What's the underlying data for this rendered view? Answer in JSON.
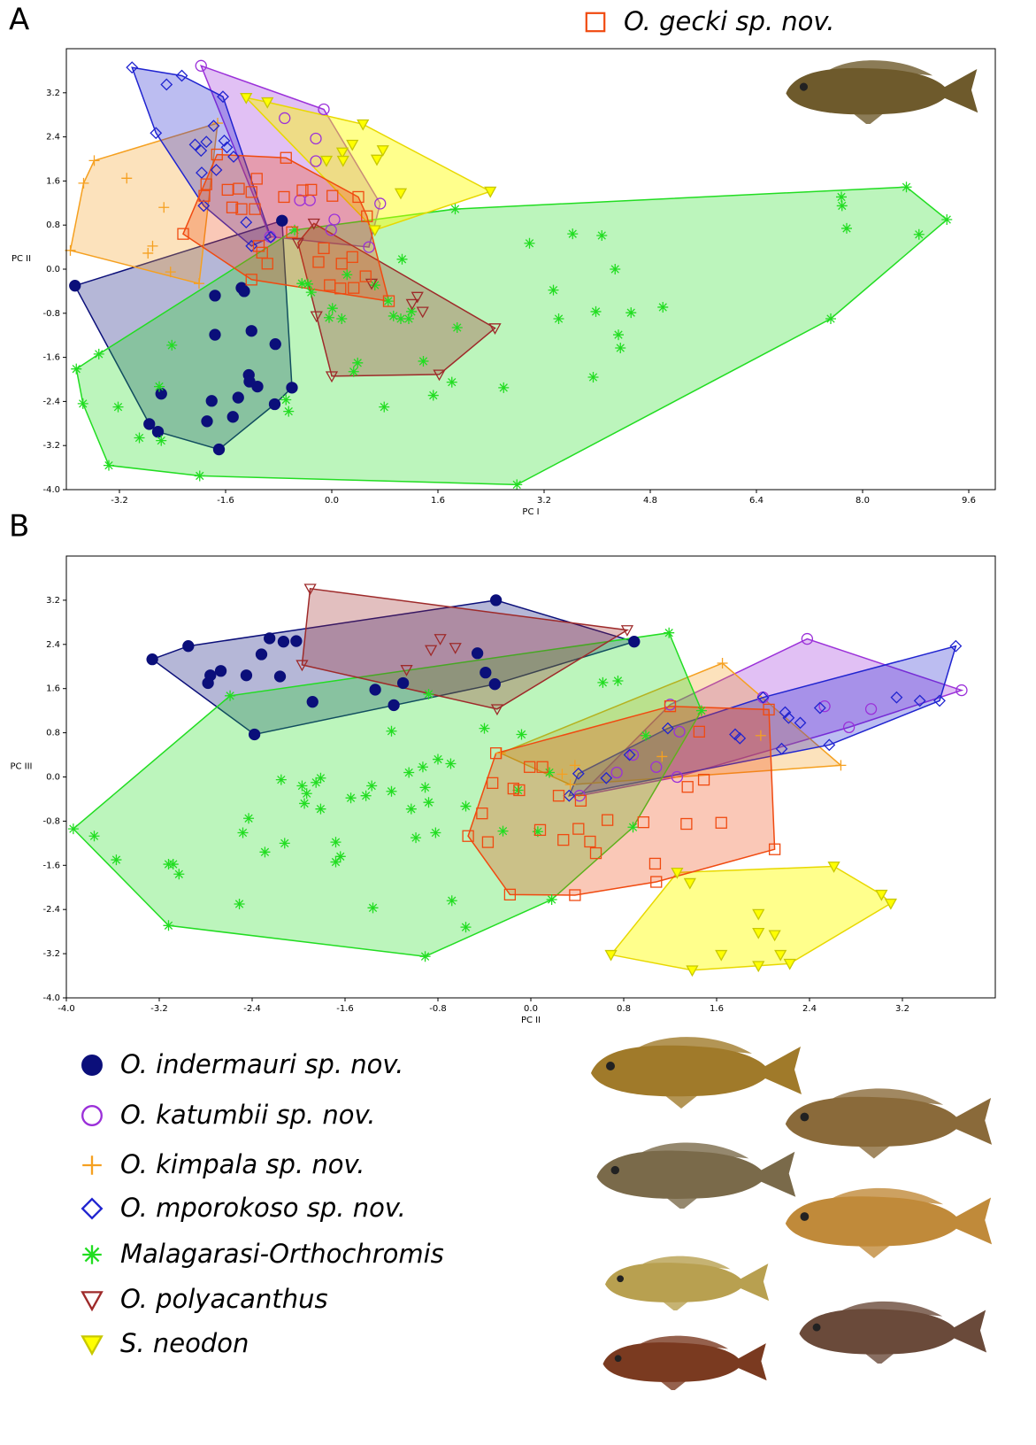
{
  "chart_data": [
    {
      "type": "scatter",
      "panel_label": "A",
      "xlabel": "PC I",
      "ylabel": "PC II",
      "xlim": [
        -4,
        10
      ],
      "ylim": [
        -4,
        4
      ],
      "xticks": [
        -3.2,
        -1.6,
        {
          "value": 0,
          "label": "0.0"
        },
        1.6,
        3.2,
        4.8,
        6.4,
        {
          "value": 8,
          "label": "8.0"
        },
        9.6
      ],
      "yticks": [
        {
          "value": -4,
          "label": "-4.0"
        },
        -3.2,
        -2.4,
        -1.6,
        -0.8,
        {
          "value": 0,
          "label": "0.0"
        },
        0.8,
        1.6,
        2.4,
        3.2
      ],
      "series": [
        {
          "name": "O. indermauri sp. nov.",
          "color": "#0b0f7a",
          "marker": "circle-filled",
          "x": [
            -3.87,
            -0.75,
            -1.76,
            -1.36,
            -1.32,
            -1.76,
            -1.21,
            -0.85,
            -0.6,
            -2.57,
            -1.12,
            -1.25,
            -1.24,
            -1.81,
            -1.41,
            -0.86,
            -2.75,
            -2.62,
            -1.88,
            -1.49,
            -1.7
          ],
          "values": [
            -0.3,
            0.88,
            -0.48,
            -0.34,
            -0.4,
            -1.19,
            -1.12,
            -1.36,
            -2.15,
            -2.26,
            -2.13,
            -1.92,
            -2.04,
            -2.39,
            -2.33,
            -2.45,
            -2.81,
            -2.95,
            -2.76,
            -2.68,
            -3.27
          ]
        },
        {
          "name": "O. katumbii sp. nov.",
          "color": "#9b30d9",
          "marker": "circle",
          "x": [
            -1.97,
            -0.12,
            -0.71,
            -0.24,
            -0.48,
            -0.33,
            -0.24,
            0.73,
            0.04,
            -0.01,
            0.56,
            -0.93
          ],
          "values": [
            3.69,
            2.9,
            2.74,
            2.37,
            1.25,
            1.25,
            1.96,
            1.19,
            0.9,
            0.71,
            0.4,
            0.59
          ]
        },
        {
          "name": "O. kimpala sp. nov.",
          "color": "#f5a020",
          "marker": "plus",
          "x": [
            -3.58,
            -3.74,
            -3.09,
            -2.53,
            -2.7,
            -2.77,
            -2.43,
            -2.0,
            -3.94,
            -1.72
          ],
          "values": [
            1.97,
            1.56,
            1.65,
            1.12,
            0.42,
            0.29,
            -0.05,
            -0.26,
            0.34,
            2.65
          ]
        },
        {
          "name": "O. mporokoso sp. nov.",
          "color": "#2024d0",
          "marker": "diamond",
          "x": [
            -3.01,
            -2.49,
            -2.26,
            -1.64,
            -1.78,
            -2.65,
            -2.06,
            -1.89,
            -1.97,
            -1.74,
            -1.48,
            -1.62,
            -1.58,
            -1.96,
            -1.93,
            -1.29,
            -1.21,
            -0.92
          ],
          "values": [
            3.66,
            3.35,
            3.51,
            3.13,
            2.6,
            2.47,
            2.26,
            2.31,
            2.15,
            1.8,
            2.04,
            2.33,
            2.21,
            1.75,
            1.15,
            0.85,
            0.42,
            0.58
          ]
        },
        {
          "name": "Malagarasi-Orthochromis",
          "color": "#22dd22",
          "marker": "asterisk",
          "x": [
            8.66,
            9.27,
            7.68,
            7.69,
            7.76,
            8.85,
            7.52,
            -3.85,
            -3.51,
            -3.75,
            -3.22,
            -2.9,
            -2.57,
            -2.6,
            -2.41,
            -3.36,
            -1.99,
            2.79,
            1.86,
            2.98,
            3.63,
            4.07,
            4.27,
            3.34,
            3.42,
            3.98,
            4.51,
            4.99,
            4.32,
            4.35,
            3.94,
            2.59,
            1.81,
            1.53,
            1.38,
            0.79,
            0.39,
            0.33,
            1.06,
            0.85,
            1.2,
            1.04,
            1.16,
            0.93,
            1.89,
            0.01,
            -0.04,
            0.15,
            -0.31,
            -0.36,
            -0.45,
            0.23,
            -0.56,
            -0.65,
            -0.69,
            0.65
          ],
          "values": [
            1.49,
            0.9,
            1.31,
            1.15,
            0.74,
            0.63,
            -0.9,
            -1.81,
            -1.54,
            -2.44,
            -2.5,
            -3.06,
            -3.11,
            -2.13,
            -1.38,
            -3.56,
            -3.75,
            -3.91,
            1.09,
            0.47,
            0.64,
            0.61,
            0.0,
            -0.38,
            -0.9,
            -0.77,
            -0.79,
            -0.69,
            -1.19,
            -1.43,
            -1.96,
            -2.15,
            -2.05,
            -2.29,
            -1.67,
            -2.5,
            -1.7,
            -1.86,
            0.18,
            -0.58,
            -0.77,
            -0.9,
            -0.9,
            -0.85,
            -1.06,
            -0.71,
            -0.88,
            -0.9,
            -0.42,
            -0.27,
            -0.26,
            -0.1,
            0.71,
            -2.58,
            -2.37,
            -0.29
          ]
        },
        {
          "name": "O. polyacanthus",
          "color": "#9e2a2a",
          "marker": "triangle-down",
          "x": [
            -0.27,
            -0.51,
            -0.23,
            0.0,
            1.62,
            2.46,
            1.37,
            1.21,
            1.29,
            0.6
          ],
          "values": [
            0.83,
            0.48,
            -0.85,
            -1.94,
            -1.91,
            -1.07,
            -0.77,
            -0.63,
            -0.5,
            -0.26
          ]
        },
        {
          "name": "S. neodon",
          "color": "#ffff00",
          "marker": "triangle-down-filled",
          "x": [
            -1.29,
            -0.97,
            0.47,
            2.39,
            0.31,
            0.16,
            0.17,
            -0.08,
            0.77,
            0.68,
            1.04,
            0.65
          ],
          "values": [
            3.11,
            3.03,
            2.63,
            1.41,
            2.26,
            2.12,
            1.97,
            1.97,
            2.16,
            1.99,
            1.38,
            0.71
          ]
        },
        {
          "name": "O. gecki sp. nov.",
          "color": "#f04a10",
          "marker": "square",
          "x": [
            -1.73,
            -0.69,
            -1.13,
            -1.57,
            -1.4,
            -1.21,
            -1.92,
            -1.5,
            -1.36,
            -1.16,
            -1.89,
            -0.72,
            -0.44,
            -0.31,
            0.01,
            0.53,
            0.4,
            -1.05,
            -0.97,
            -1.1,
            -0.6,
            -0.12,
            0.15,
            0.31,
            -0.2,
            -0.03,
            0.13,
            0.33,
            0.51,
            0.86,
            -2.24,
            -1.21
          ],
          "values": [
            2.08,
            2.02,
            1.64,
            1.44,
            1.46,
            1.4,
            1.33,
            1.12,
            1.09,
            1.09,
            1.54,
            1.31,
            1.43,
            1.44,
            1.33,
            0.96,
            1.31,
            0.3,
            0.1,
            0.42,
            0.67,
            0.38,
            0.1,
            0.22,
            0.13,
            -0.29,
            -0.35,
            -0.34,
            -0.13,
            -0.58,
            0.64,
            -0.19
          ]
        }
      ]
    },
    {
      "type": "scatter",
      "panel_label": "B",
      "xlabel": "PC II",
      "ylabel": "PC III",
      "xlim": [
        -4,
        4
      ],
      "ylim": [
        -4,
        4
      ],
      "xticks": [
        {
          "value": -4,
          "label": "-4.0"
        },
        -3.2,
        -2.4,
        -1.6,
        -0.8,
        {
          "value": 0,
          "label": "0.0"
        },
        0.8,
        1.6,
        2.4,
        3.2
      ],
      "yticks": [
        {
          "value": -4,
          "label": "-4.0"
        },
        -3.2,
        -2.4,
        -1.6,
        -0.8,
        {
          "value": 0,
          "label": "0.0"
        },
        0.8,
        1.6,
        2.4,
        3.2
      ],
      "series": [
        {
          "color": "#0b0f7a",
          "marker": "circle-filled",
          "x": [
            -3.26,
            -2.95,
            -2.67,
            -2.76,
            -2.78,
            -2.25,
            -2.13,
            -2.02,
            -2.32,
            -2.45,
            -2.16,
            -1.88,
            -2.38,
            -1.34,
            -1.18,
            -1.1,
            -0.46,
            -0.39,
            -0.31,
            -0.3,
            0.89
          ],
          "values": [
            2.13,
            2.37,
            1.92,
            1.84,
            1.7,
            2.51,
            2.45,
            2.46,
            2.22,
            1.84,
            1.82,
            1.36,
            0.77,
            1.58,
            1.3,
            1.7,
            2.24,
            1.89,
            1.68,
            3.2,
            2.45
          ]
        },
        {
          "color": "#9b30d9",
          "marker": "circle",
          "x": [
            2.38,
            3.71,
            2.93,
            2.74,
            2.53,
            2.0,
            1.2,
            1.28,
            1.08,
            1.26,
            0.74,
            0.42,
            0.88
          ],
          "values": [
            2.5,
            1.57,
            1.23,
            0.9,
            1.28,
            1.44,
            1.31,
            0.82,
            0.18,
            0.0,
            0.08,
            -0.34,
            0.4
          ]
        },
        {
          "color": "#f5a020",
          "marker": "plus",
          "x": [
            1.65,
            2.67,
            1.98,
            1.13,
            0.38,
            0.27,
            -0.26,
            0.34
          ],
          "values": [
            2.06,
            0.21,
            0.75,
            0.37,
            0.21,
            0.05,
            0.43,
            -0.14
          ]
        },
        {
          "color": "#2024d0",
          "marker": "diamond",
          "x": [
            3.66,
            3.52,
            3.35,
            3.15,
            2.49,
            2.19,
            2.22,
            2.32,
            2.57,
            2.16,
            1.76,
            1.8,
            2.0,
            1.18,
            0.85,
            0.65,
            0.41,
            0.33
          ],
          "values": [
            2.37,
            1.38,
            1.38,
            1.44,
            1.25,
            1.17,
            1.07,
            0.98,
            0.58,
            0.51,
            0.77,
            0.7,
            1.44,
            0.88,
            0.4,
            -0.02,
            0.06,
            -0.34
          ]
        },
        {
          "color": "#22dd22",
          "marker": "asterisk",
          "x": [
            -3.94,
            -3.76,
            -3.57,
            -3.12,
            -3.08,
            -3.03,
            -3.12,
            -2.51,
            -2.43,
            -2.48,
            -2.29,
            -2.12,
            -2.15,
            -1.97,
            -1.93,
            -1.85,
            -1.81,
            -1.95,
            -1.81,
            -1.55,
            -1.42,
            -1.37,
            -1.2,
            -1.68,
            -1.64,
            -1.68,
            -1.36,
            -0.91,
            -0.56,
            -0.68,
            -0.82,
            -0.99,
            -1.05,
            -0.93,
            -0.91,
            -0.88,
            -0.8,
            -0.69,
            -1.03,
            -0.56,
            -0.4,
            -0.08,
            0.06,
            -0.11,
            0.16,
            0.18,
            0.62,
            0.75,
            0.88,
            1.19,
            1.47,
            0.99,
            -0.88,
            -2.59,
            -0.24,
            -1.2
          ],
          "values": [
            -0.94,
            -1.07,
            -1.5,
            -1.58,
            -1.58,
            -1.76,
            -2.69,
            -2.3,
            -0.75,
            -1.01,
            -1.36,
            -1.2,
            -0.05,
            -0.16,
            -0.3,
            -0.1,
            -0.02,
            -0.48,
            -0.58,
            -0.38,
            -0.34,
            -0.16,
            -0.26,
            -1.18,
            -1.44,
            -1.54,
            -2.37,
            -3.25,
            -2.72,
            -2.24,
            -1.01,
            -1.1,
            0.08,
            0.18,
            -0.19,
            -0.46,
            0.32,
            0.24,
            -0.58,
            -0.53,
            0.88,
            0.77,
            -0.99,
            -0.24,
            0.08,
            -2.22,
            1.71,
            1.74,
            -0.91,
            2.61,
            1.2,
            0.75,
            1.5,
            1.47,
            -0.98,
            0.83
          ]
        },
        {
          "color": "#9e2a2a",
          "marker": "triangle-down",
          "x": [
            -1.9,
            -1.97,
            -0.78,
            -0.86,
            -0.65,
            -1.07,
            -0.29,
            0.83
          ],
          "values": [
            3.41,
            2.03,
            2.5,
            2.3,
            2.34,
            1.94,
            1.23,
            2.66
          ]
        },
        {
          "color": "#ffff00",
          "marker": "triangle-down-filled",
          "x": [
            0.69,
            1.39,
            1.96,
            2.23,
            2.61,
            3.02,
            3.1,
            1.37,
            1.26,
            1.96,
            1.96,
            2.1,
            2.15,
            1.64
          ],
          "values": [
            -3.22,
            -3.5,
            -3.42,
            -3.38,
            -1.62,
            -2.13,
            -2.29,
            -1.92,
            -1.73,
            -2.48,
            -2.82,
            -2.86,
            -3.22,
            -3.22
          ]
        },
        {
          "color": "#f04a10",
          "marker": "square",
          "x": [
            -0.3,
            -0.54,
            -0.18,
            0.38,
            2.1,
            2.05,
            1.2,
            1.45,
            1.35,
            1.49,
            -0.01,
            0.1,
            -0.15,
            -0.33,
            -0.42,
            -0.1,
            0.24,
            0.43,
            0.08,
            0.28,
            0.41,
            0.51,
            0.56,
            0.66,
            0.97,
            1.34,
            1.64,
            1.07,
            1.08,
            -0.37
          ],
          "values": [
            0.43,
            -1.07,
            -2.13,
            -2.14,
            -1.31,
            1.22,
            1.28,
            0.82,
            -0.18,
            -0.05,
            0.18,
            0.18,
            -0.21,
            -0.11,
            -0.66,
            -0.24,
            -0.34,
            -0.43,
            -0.96,
            -1.14,
            -0.94,
            -1.17,
            -1.38,
            -0.78,
            -0.82,
            -0.85,
            -0.83,
            -1.57,
            -1.9,
            -1.18
          ]
        }
      ]
    }
  ]
}
